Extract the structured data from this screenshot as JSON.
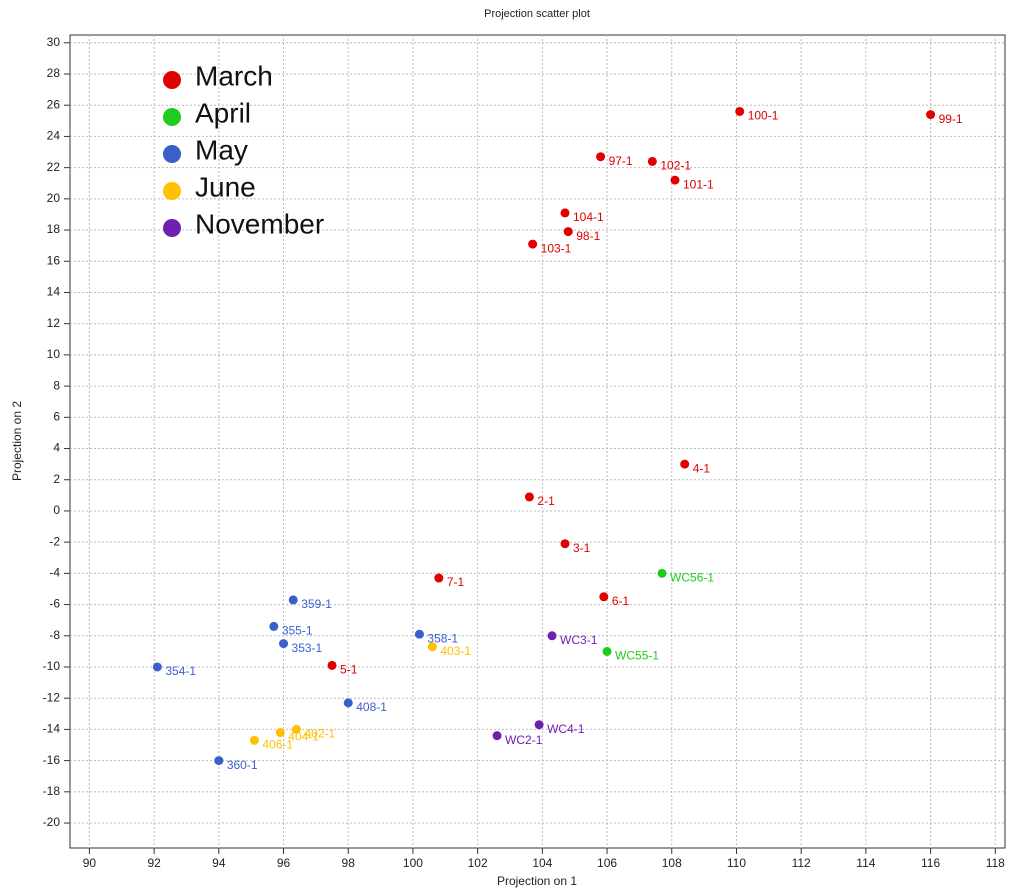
{
  "chart_data": {
    "type": "scatter",
    "title": "Projection scatter plot",
    "x_label": "Projection on 1",
    "y_label": "Projection on 2",
    "xlim": [
      89.4,
      118.3
    ],
    "ylim": [
      -21.6,
      30.5
    ],
    "xticks": [
      90,
      92,
      94,
      96,
      98,
      100,
      102,
      104,
      106,
      108,
      110,
      112,
      114,
      116,
      118
    ],
    "yticks": [
      -20,
      -18,
      -16,
      -14,
      -12,
      -10,
      -8,
      -6,
      -4,
      -2,
      0,
      2,
      4,
      6,
      8,
      10,
      12,
      14,
      16,
      18,
      20,
      22,
      24,
      26,
      28,
      30
    ],
    "grid": true,
    "legend": "upper left",
    "series": [
      {
        "name": "March",
        "color": "#e00000",
        "x": [
          110.1,
          116.0,
          105.8,
          107.4,
          108.1,
          104.7,
          104.8,
          103.7,
          108.4,
          103.6,
          104.7,
          100.8,
          105.9,
          97.5
        ],
        "values": [
          25.6,
          25.4,
          22.7,
          22.4,
          21.2,
          19.1,
          17.9,
          17.1,
          3.0,
          0.9,
          -2.1,
          -4.3,
          -5.5,
          -9.9
        ],
        "labels": [
          "100-1",
          "99-1",
          "97-1",
          "102-1",
          "101-1",
          "104-1",
          "98-1",
          "103-1",
          "4-1",
          "2-1",
          "3-1",
          "7-1",
          "6-1",
          "5-1"
        ]
      },
      {
        "name": "April",
        "color": "#1ecc1e",
        "x": [
          107.7,
          106.0
        ],
        "values": [
          -4.0,
          -9.0
        ],
        "labels": [
          "WC56-1",
          "WC55-1"
        ]
      },
      {
        "name": "May",
        "color": "#3a5fcd",
        "x": [
          96.3,
          95.7,
          96.0,
          100.2,
          92.1,
          98.0,
          94.0
        ],
        "values": [
          -5.7,
          -7.4,
          -8.5,
          -7.9,
          -10.0,
          -12.3,
          -16.0
        ],
        "labels": [
          "359-1",
          "355-1",
          "353-1",
          "358-1",
          "354-1",
          "408-1",
          "360-1"
        ]
      },
      {
        "name": "June",
        "color": "#ffc000",
        "x": [
          100.6,
          96.4,
          95.9,
          95.1
        ],
        "values": [
          -8.7,
          -14.0,
          -14.2,
          -14.7
        ],
        "labels": [
          "403-1",
          "402-1",
          "404-1",
          "406-1"
        ]
      },
      {
        "name": "November",
        "color": "#7020b0",
        "x": [
          104.3,
          103.9,
          102.6
        ],
        "values": [
          -8.0,
          -13.7,
          -14.4
        ],
        "labels": [
          "WC3-1",
          "WC4-1",
          "WC2-1"
        ]
      }
    ]
  }
}
